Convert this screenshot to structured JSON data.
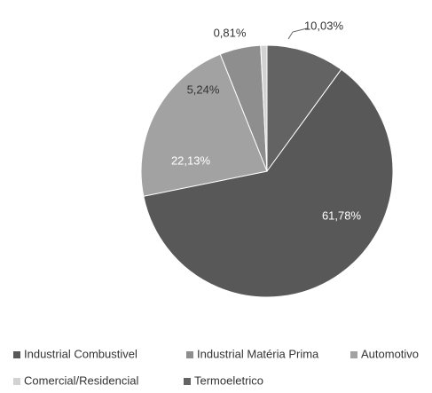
{
  "chart_data": {
    "type": "pie",
    "categories": [
      "Termoeletrico",
      "Industrial Combustivel",
      "Automotivo",
      "Industrial Matéria Prima",
      "Comercial/Residencial"
    ],
    "values": [
      10.03,
      61.78,
      22.13,
      5.24,
      0.81
    ],
    "value_labels": [
      "10,03%",
      "61,78%",
      "22,13%",
      "5,24%",
      "0,81%"
    ],
    "colors": [
      "#636363",
      "#585858",
      "#a2a2a2",
      "#8e8e8e",
      "#d2d2d2"
    ],
    "legend": "bottom"
  }
}
